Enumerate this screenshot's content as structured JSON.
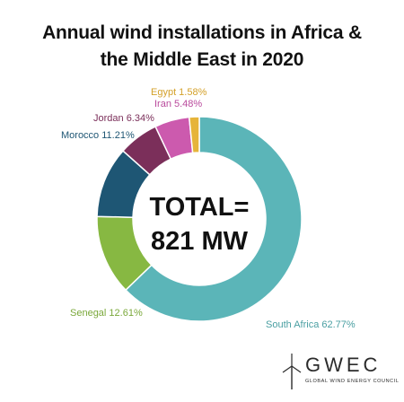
{
  "chart_data": {
    "type": "pie",
    "donut": true,
    "title_lines": [
      "Annual wind installations in Africa &",
      "the Middle East in 2020"
    ],
    "center_lines": [
      "TOTAL=",
      "821 MW"
    ],
    "slices": [
      {
        "name": "South Africa",
        "label": "South Africa 62.77%",
        "value": 62.77,
        "color": "#5bb5b8",
        "label_color": "#4a9fa2"
      },
      {
        "name": "Senegal",
        "label": "Senegal 12.61%",
        "value": 12.61,
        "color": "#87b842",
        "label_color": "#7aa83a"
      },
      {
        "name": "Morocco",
        "label": "Morocco 11.21%",
        "value": 11.21,
        "color": "#1e5674",
        "label_color": "#1e5674"
      },
      {
        "name": "Jordan",
        "label": "Jordan 6.34%",
        "value": 6.34,
        "color": "#7b2f5a",
        "label_color": "#7b2f5a"
      },
      {
        "name": "Iran",
        "label": "Iran 5.48%",
        "value": 5.48,
        "color": "#cc5aae",
        "label_color": "#b94a9c"
      },
      {
        "name": "Egypt",
        "label": "Egypt 1.58%",
        "value": 1.58,
        "color": "#e6b43a",
        "label_color": "#d4a12a"
      }
    ]
  },
  "logo": {
    "word": "GWEC",
    "subtitle": "GLOBAL WIND ENERGY COUNCIL"
  }
}
